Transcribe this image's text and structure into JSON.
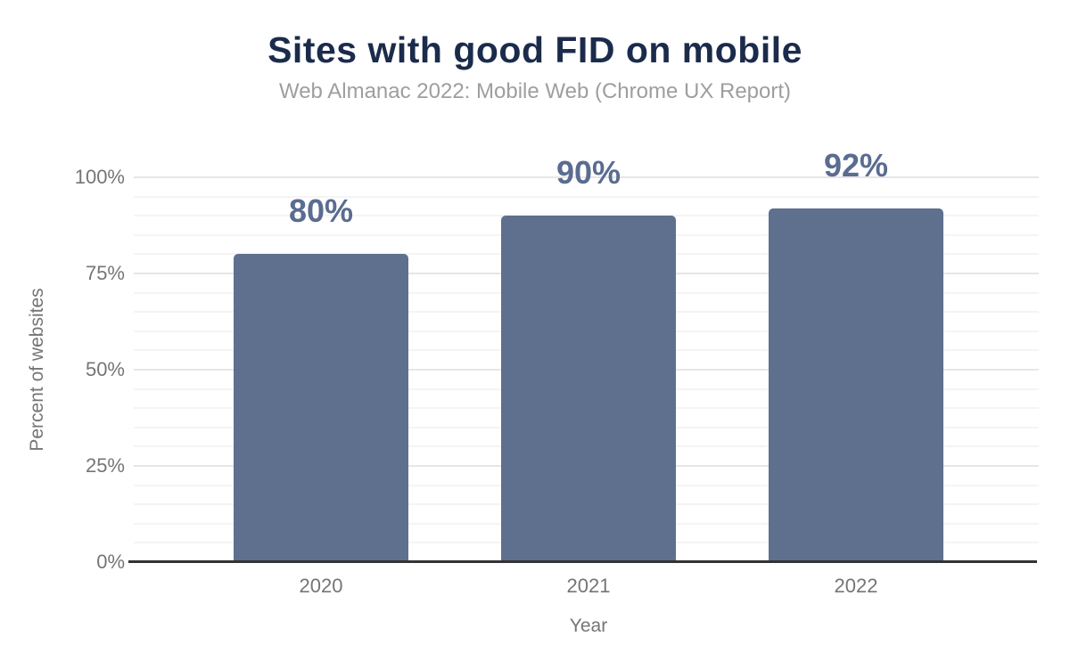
{
  "chart_data": {
    "type": "bar",
    "title": "Sites with good FID on mobile",
    "subtitle": "Web Almanac 2022: Mobile Web (Chrome UX Report)",
    "xlabel": "Year",
    "ylabel": "Percent of websites",
    "categories": [
      "2020",
      "2021",
      "2022"
    ],
    "values": [
      80,
      90,
      92
    ],
    "data_labels": [
      "80%",
      "90%",
      "92%"
    ],
    "ylim": [
      0,
      100
    ],
    "yticks": [
      0,
      25,
      50,
      75,
      100
    ],
    "ytick_labels": [
      "0%",
      "25%",
      "50%",
      "75%",
      "100%"
    ],
    "minor_grid_step": 5,
    "grid": "horizontal",
    "legend": "none",
    "colors": {
      "bar": "#5e708e",
      "data_label": "#5a6c90",
      "title": "#1b2b4b",
      "subtitle": "#9e9e9e",
      "tick_label": "#757575",
      "axis_title": "#757575",
      "axis_line": "#333333",
      "gridline_major": "#e6e6e6",
      "gridline_minor": "#f4f4f4"
    }
  }
}
